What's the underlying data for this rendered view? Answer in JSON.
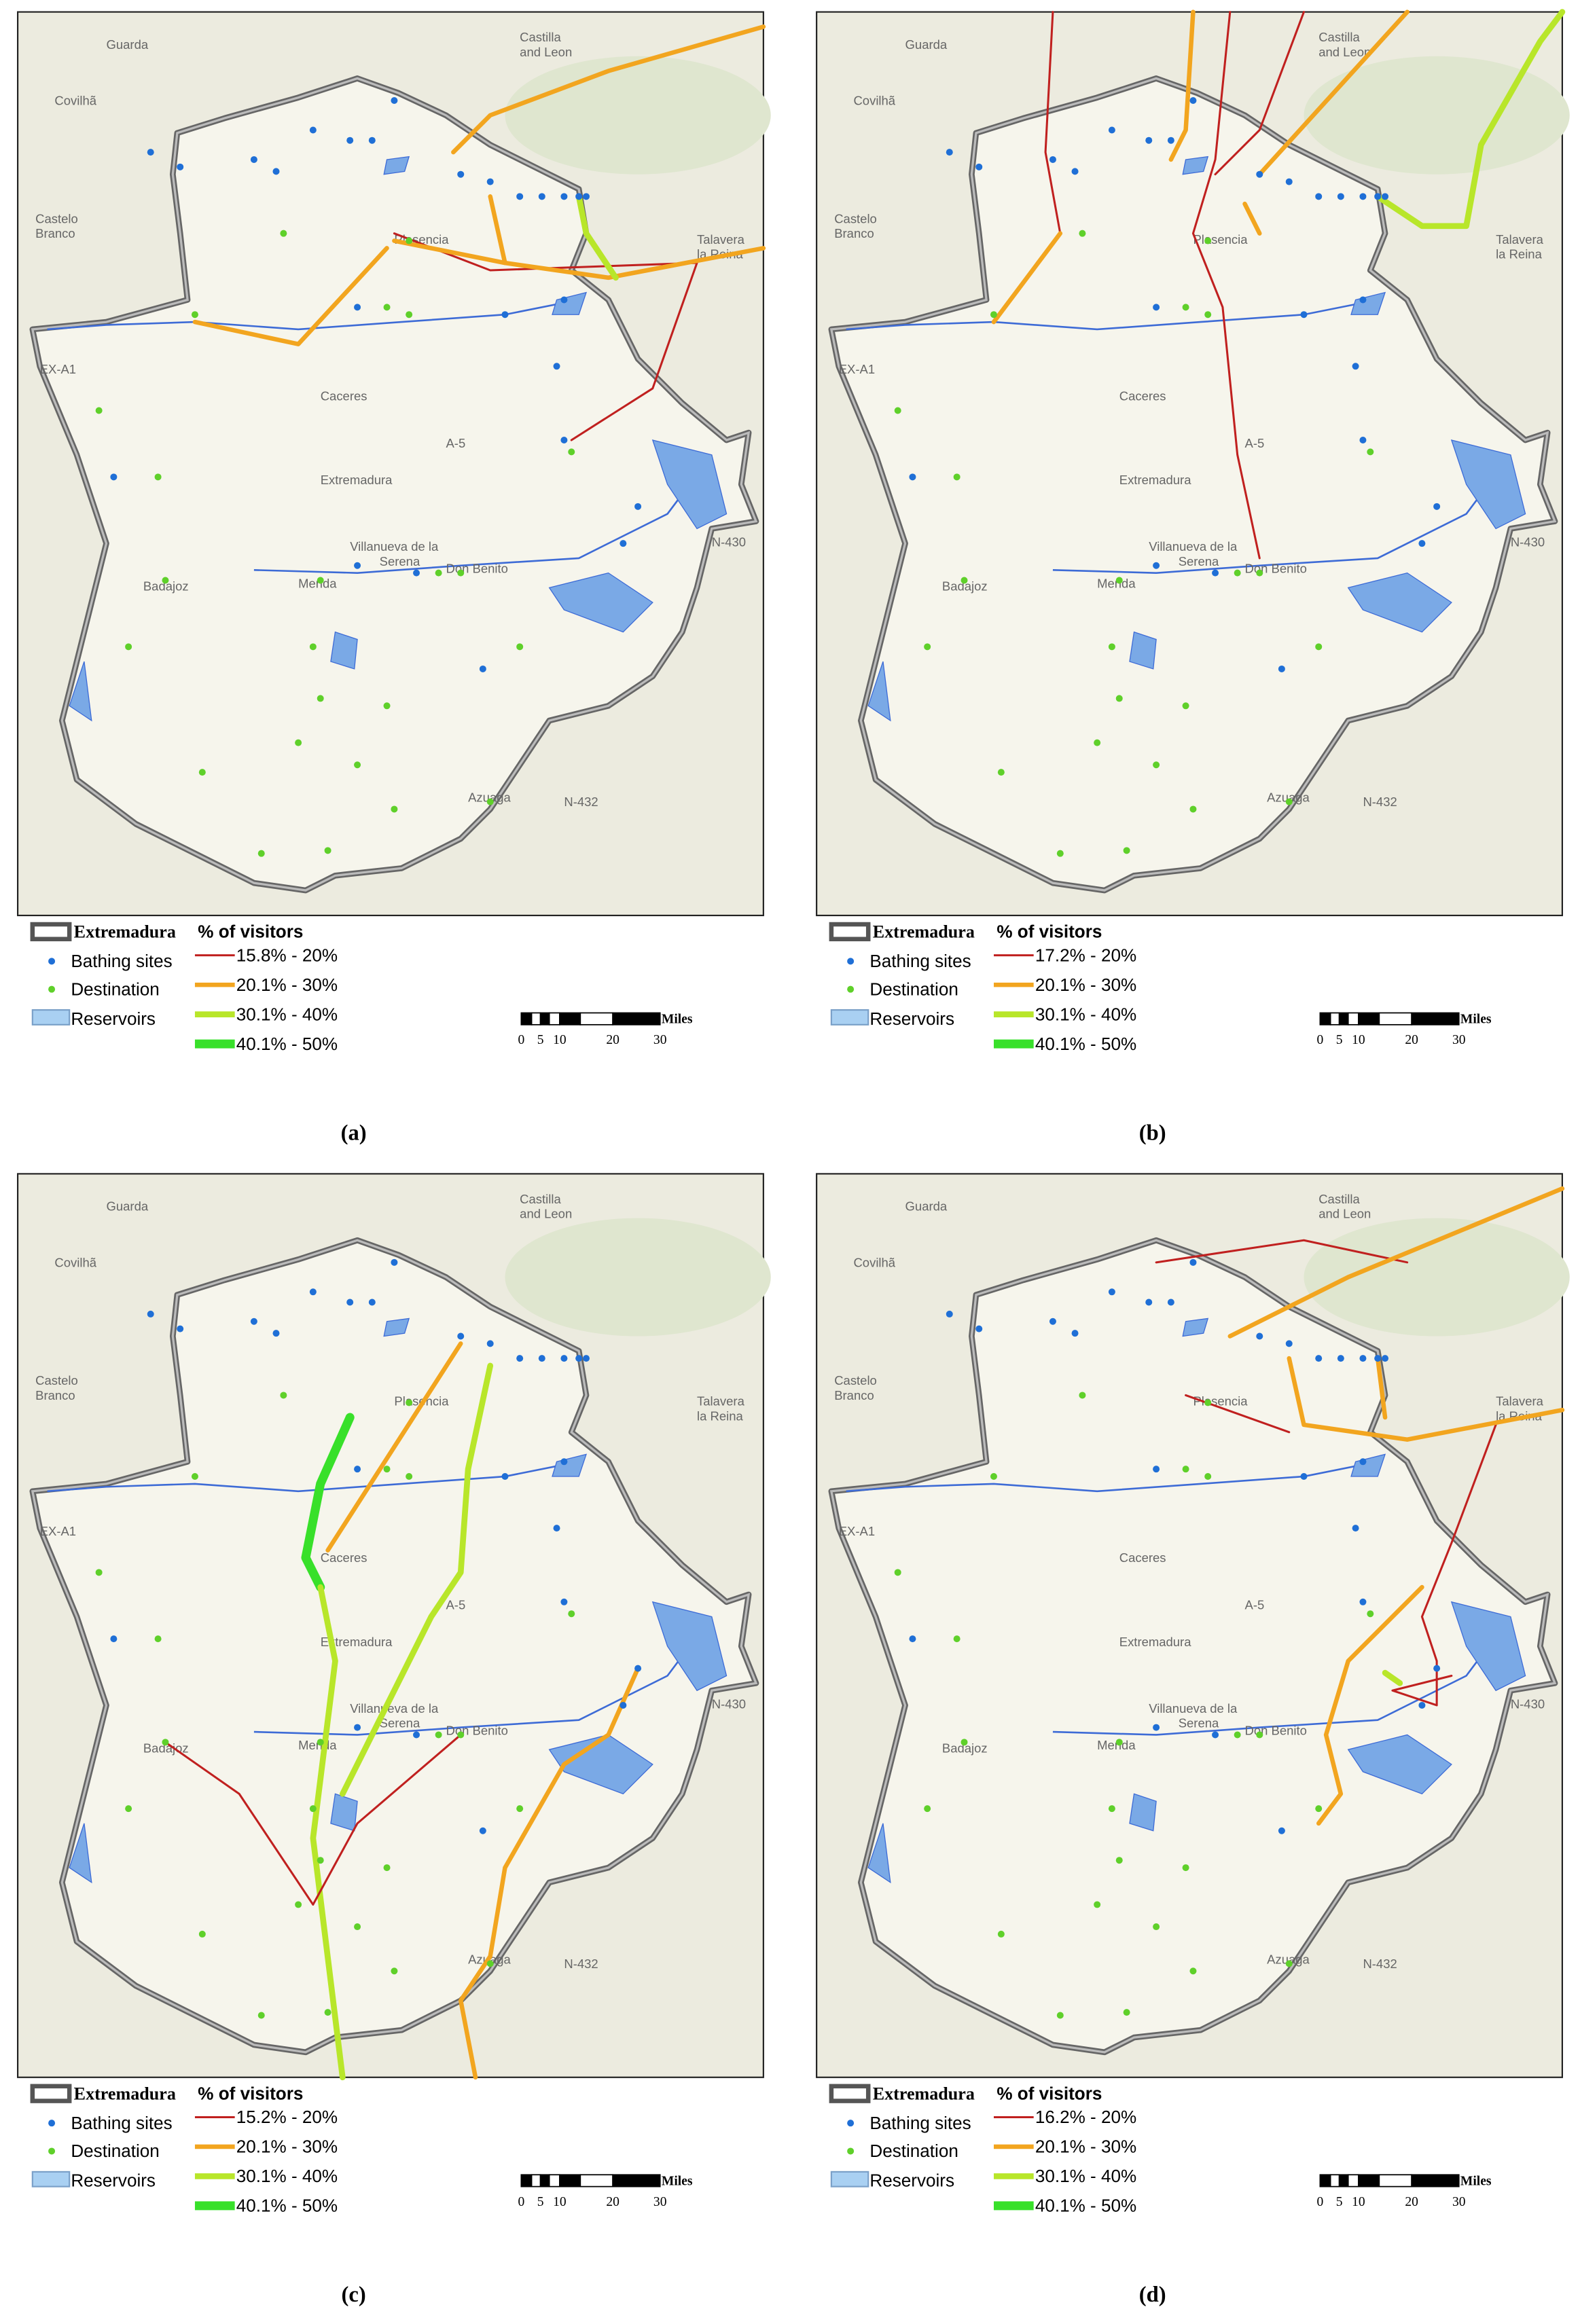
{
  "legend": {
    "boundary": "Extremadura",
    "title": "% of visitors",
    "items": [
      "Bathing sites",
      "Destination",
      "Reservoirs"
    ],
    "range_colors": [
      "#c0201f",
      "#f2a51f",
      "#b8e62a",
      "#38e02a"
    ]
  },
  "scale": {
    "unit": "Miles",
    "ticks": [
      "0",
      "5",
      "10",
      "20",
      "30"
    ]
  },
  "place_labels": [
    "Castilla",
    "and Leon",
    "Guarda",
    "Covilhã",
    "Castelo",
    "Branco",
    "Plasencia",
    "Talavera",
    "la Reina",
    "Caceres",
    "Extremadura",
    "Villanueva de la",
    "Serena",
    "Don Benito",
    "Badajoz",
    "Merida",
    "Azuaga",
    "N-432",
    "N-430",
    "A-5",
    "EX-A1"
  ],
  "panels": [
    {
      "caption": "(a)",
      "ranges": [
        "15.8% - 20%",
        "20.1% - 30%",
        "30.1% - 40%",
        "40.1% - 50%"
      ]
    },
    {
      "caption": "(b)",
      "ranges": [
        "17.2% - 20%",
        "20.1% - 30%",
        "30.1% - 40%",
        "40.1% - 50%"
      ]
    },
    {
      "caption": "(c)",
      "ranges": [
        "15.2% - 20%",
        "20.1% - 30%",
        "30.1% - 40%",
        "40.1% - 50%"
      ]
    },
    {
      "caption": "(d)",
      "ranges": [
        "16.2% - 20%",
        "20.1% - 30%",
        "30.1% - 40%",
        "40.1% - 50%"
      ]
    }
  ]
}
